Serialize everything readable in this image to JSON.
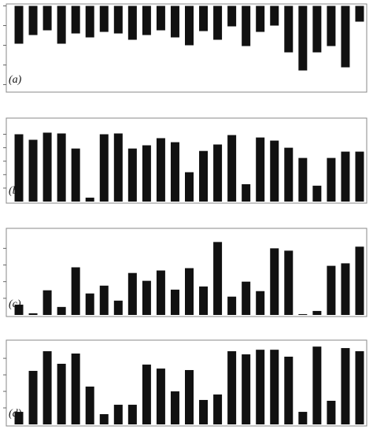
{
  "chart_data": [
    {
      "type": "bar",
      "label": "(a)",
      "color": "#111111",
      "values": [
        -1.92,
        -1.48,
        -1.24,
        -1.92,
        -1.4,
        -1.6,
        -1.32,
        -1.4,
        -1.72,
        -1.48,
        -1.24,
        -1.6,
        -2.0,
        -1.28,
        -1.72,
        -1.04,
        -2.04,
        -1.32,
        -1.0,
        -2.36,
        -3.28,
        -2.36,
        -2.04,
        -3.12,
        -0.8
      ],
      "ylim": [
        -4.3,
        0.1
      ],
      "yticks": [
        0,
        -1,
        -2,
        -3,
        -4
      ]
    },
    {
      "type": "bar",
      "label": "(b)",
      "color": "#111111",
      "values": [
        5.0,
        4.59,
        5.12,
        5.06,
        3.94,
        0.29,
        5.0,
        5.06,
        3.94,
        4.18,
        4.71,
        4.41,
        2.18,
        3.76,
        4.24,
        4.94,
        1.29,
        4.76,
        4.53,
        4.0,
        3.24,
        1.18,
        3.24,
        3.71,
        3.71
      ],
      "ylim": [
        0,
        6.2
      ],
      "yticks": [
        1,
        2,
        3,
        4,
        5
      ]
    },
    {
      "type": "bar",
      "label": "(c)",
      "color": "#111111",
      "values": [
        0.62,
        0.1,
        1.48,
        0.48,
        2.86,
        1.29,
        1.76,
        0.86,
        2.52,
        2.05,
        2.67,
        1.52,
        2.81,
        1.71,
        4.38,
        1.1,
        2.0,
        1.43,
        4.0,
        3.86,
        0.05,
        0.24,
        2.95,
        3.1,
        4.1
      ],
      "ylim": [
        0,
        5.2
      ],
      "yticks": [
        1,
        2,
        3,
        4
      ]
    },
    {
      "type": "bar",
      "label": "(d)",
      "color": "#111111",
      "values": [
        0.76,
        3.24,
        4.43,
        3.67,
        4.29,
        2.29,
        0.62,
        1.19,
        1.19,
        3.62,
        3.38,
        2.0,
        3.29,
        1.48,
        1.81,
        4.43,
        4.24,
        4.52,
        4.52,
        4.1,
        0.76,
        4.71,
        1.43,
        4.62,
        4.43
      ],
      "ylim": [
        0,
        5.1
      ],
      "yticks": [
        1,
        2,
        3,
        4
      ]
    }
  ]
}
